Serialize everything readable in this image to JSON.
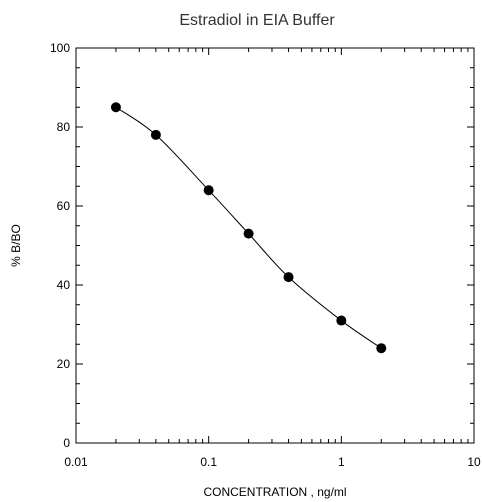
{
  "chart_data": {
    "type": "line",
    "title": "Estradiol in EIA Buffer",
    "xlabel": "CONCENTRATION , ng/ml",
    "ylabel": "% B/BO",
    "x_scale": "log",
    "xlim": [
      0.01,
      10
    ],
    "ylim": [
      0,
      100
    ],
    "x_ticks": [
      0.01,
      0.1,
      1,
      10
    ],
    "x_tick_labels": [
      "0.01",
      "0.1",
      "1",
      "10"
    ],
    "y_ticks": [
      0,
      20,
      40,
      60,
      80,
      100
    ],
    "y_tick_labels": [
      "0",
      "20",
      "40",
      "60",
      "80",
      "100"
    ],
    "grid": false,
    "colors": {
      "series": "#000000",
      "title": "#333333"
    },
    "series": [
      {
        "x": [
          0.02,
          0.04,
          0.1,
          0.2,
          0.4,
          1,
          2
        ],
        "y": [
          85,
          78,
          64,
          53,
          42,
          31,
          24
        ]
      }
    ]
  }
}
